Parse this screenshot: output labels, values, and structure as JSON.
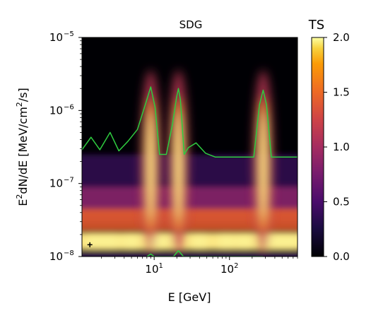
{
  "chart_data": {
    "type": "heatmap",
    "title": "SDG",
    "xlabel": "E [GeV]",
    "ylabel_main": "E",
    "ylabel_sup1": "2",
    "ylabel_mid": "dN/dE [MeV/cm",
    "ylabel_sup2": "2",
    "ylabel_end": "/s]",
    "x_scale": "log",
    "y_scale": "log",
    "xlim": [
      1.1,
      800
    ],
    "ylim": [
      1e-08,
      1e-05
    ],
    "x_ticks": [
      {
        "value": 10,
        "base": "10",
        "exp": "1"
      },
      {
        "value": 100,
        "base": "10",
        "exp": "2"
      }
    ],
    "y_ticks": [
      {
        "value": 1e-08,
        "base": "10",
        "exp": "−8"
      },
      {
        "value": 1e-07,
        "base": "10",
        "exp": "−7"
      },
      {
        "value": 1e-06,
        "base": "10",
        "exp": "−6"
      },
      {
        "value": 1e-05,
        "base": "10",
        "exp": "−5"
      }
    ],
    "peaks_gev": [
      9,
      21,
      280
    ],
    "upper_limit_curve": {
      "color": "#2ecc40",
      "x": [
        1.1,
        1.45,
        1.9,
        2.6,
        3.4,
        4.5,
        6.0,
        7.8,
        9.0,
        10.3,
        11.8,
        14.5,
        17.5,
        19.8,
        21.0,
        22.3,
        25.0,
        28.5,
        36,
        48,
        65,
        95,
        150,
        210,
        250,
        280,
        310,
        360,
        450,
        800
      ],
      "y": [
        2.9e-07,
        4.3e-07,
        2.9e-07,
        5e-07,
        2.8e-07,
        3.8e-07,
        5.5e-07,
        1.3e-06,
        2.1e-06,
        1.1e-06,
        2.5e-07,
        2.5e-07,
        6.5e-07,
        1.5e-06,
        2e-06,
        1.4e-06,
        2.5e-07,
        3.1e-07,
        3.6e-07,
        2.6e-07,
        2.3e-07,
        2.3e-07,
        2.3e-07,
        2.3e-07,
        1.2e-06,
        1.9e-06,
        1.2e-06,
        2.3e-07,
        2.3e-07,
        2.3e-07
      ]
    },
    "lower_curve": {
      "color": "#2ecc40",
      "x": [
        8.0,
        9.0,
        10.0,
        18.0,
        21.0,
        24.5,
        280
      ],
      "y": [
        1e-08,
        1.08e-08,
        1e-08,
        1e-08,
        1.2e-08,
        1e-08,
        1e-08
      ]
    },
    "best_fit_marker": {
      "x": 1.4,
      "y": 1.45e-08,
      "symbol": "+"
    },
    "colorbar": {
      "label": "TS",
      "min": 0.0,
      "max": 2.0,
      "ticks": [
        "0.0",
        "0.5",
        "1.0",
        "1.5",
        "2.0"
      ],
      "colormap": "inferno"
    },
    "legend": "none",
    "grid": false
  }
}
